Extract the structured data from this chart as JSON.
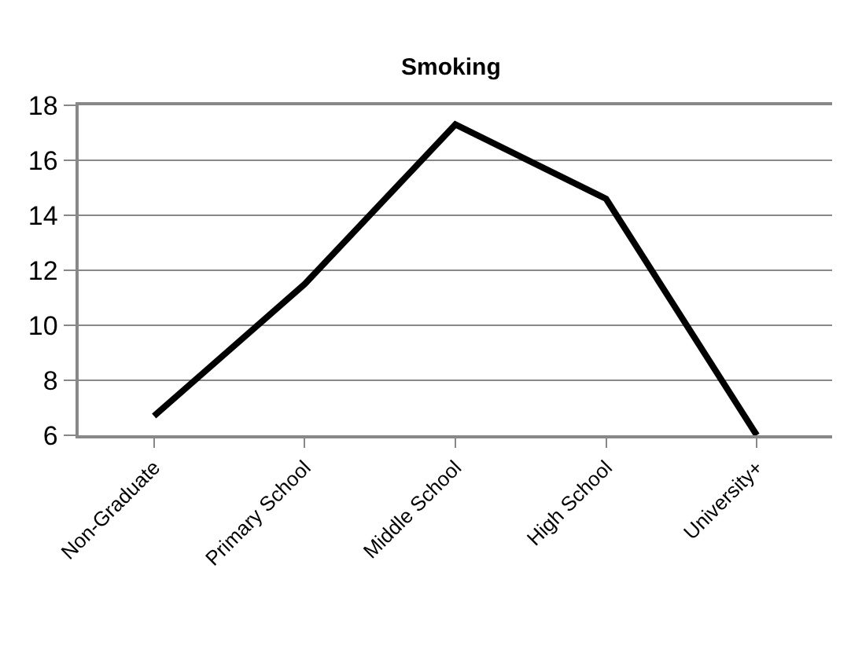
{
  "chart_data": {
    "type": "line",
    "title": "Smoking",
    "categories": [
      "Non-Graduate",
      "Primary School",
      "Middle School",
      "High School",
      "University+"
    ],
    "series": [
      {
        "color": "#000000",
        "values": [
          6.7,
          11.5,
          17.3,
          14.6,
          6.0
        ]
      }
    ],
    "ylim": [
      6,
      18
    ],
    "yticks": [
      6,
      8,
      10,
      12,
      14,
      16,
      18
    ],
    "grid": "y",
    "marker": "none",
    "line_style": "solid"
  }
}
